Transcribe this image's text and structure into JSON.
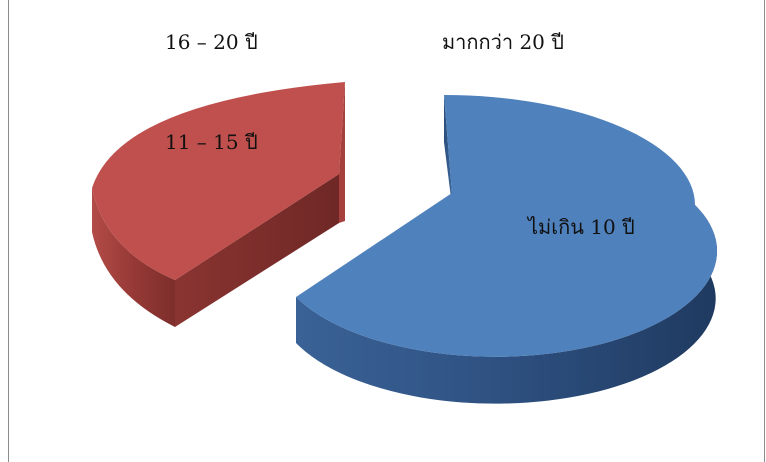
{
  "chart_data": {
    "type": "pie",
    "style": "exploded 3d pie",
    "categories": [
      "ไม่เกิน 10 ปี",
      "11 – 15 ปี",
      "16 – 20 ปี",
      "มากกว่า 20 ปี"
    ],
    "values": [
      57,
      43,
      0,
      0
    ],
    "colors": [
      "#4f81bd",
      "#c0504d",
      "#9bbb59",
      "#8064a2"
    ],
    "title": "",
    "legend": "none"
  }
}
